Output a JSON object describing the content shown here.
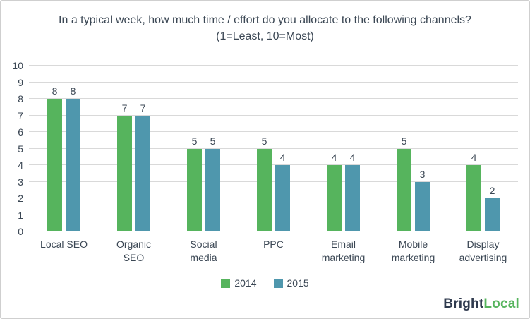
{
  "chart_data": {
    "type": "bar",
    "title": "In a typical week, how much time / effort do you allocate to the following channels? (1=Least, 10=Most)",
    "categories": [
      "Local SEO",
      "Organic SEO",
      "Social media",
      "PPC",
      "Email marketing",
      "Mobile marketing",
      "Display advertising"
    ],
    "series": [
      {
        "name": "2014",
        "color": "#56b45d",
        "values": [
          8,
          7,
          5,
          5,
          4,
          5,
          4
        ]
      },
      {
        "name": "2015",
        "color": "#4f97ad",
        "values": [
          8,
          7,
          5,
          4,
          4,
          3,
          2
        ]
      }
    ],
    "ylim": [
      0,
      10
    ],
    "ytick_step": 1,
    "grid": true,
    "legend_position": "bottom",
    "data_labels": true
  },
  "branding": {
    "logo_part1": "Bright",
    "logo_part2": "Local"
  },
  "colors": {
    "grid": "#d9d9d9",
    "text": "#3b4754",
    "logo_dark": "#2f3a4e",
    "logo_green": "#56b45d",
    "border": "#cfcfcf"
  }
}
